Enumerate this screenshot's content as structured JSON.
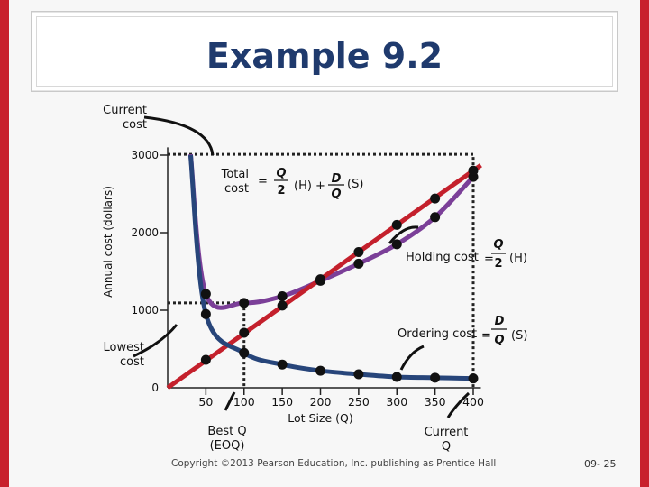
{
  "slide": {
    "title": "Example 9.2",
    "footer": "Copyright ©2013 Pearson Education, Inc. publishing as Prentice Hall",
    "slide_number": "09- 25"
  },
  "chart_data": {
    "type": "line",
    "xlabel": "Lot Size (Q)",
    "ylabel": "Annual cost (dollars)",
    "xlim": [
      0,
      420
    ],
    "ylim": [
      0,
      3200
    ],
    "x_ticks": [
      "0",
      "50",
      "100",
      "150",
      "200",
      "250",
      "300",
      "350",
      "400"
    ],
    "y_ticks": [
      "0",
      "1000",
      "2000",
      "3000"
    ],
    "series": [
      {
        "color": "#7b3f98",
        "x": [
          30,
          50,
          100,
          150,
          200,
          250,
          300,
          350,
          400
        ],
        "y": [
          3010,
          1210,
          1095,
          1180,
          1380,
          1600,
          1850,
          2200,
          2720
        ]
      },
      {
        "color": "#c4202c",
        "x": [
          0,
          50,
          100,
          150,
          200,
          250,
          300,
          350,
          400
        ],
        "y": [
          0,
          360,
          710,
          1060,
          1400,
          1750,
          2100,
          2440,
          2800
        ]
      },
      {
        "color": "#27457a",
        "x": [
          30,
          50,
          100,
          150,
          200,
          250,
          300,
          350,
          400
        ],
        "y": [
          3000,
          950,
          450,
          300,
          220,
          175,
          140,
          130,
          120
        ]
      }
    ],
    "annotations": {
      "current_cost": "Current\ncost",
      "lowest_cost": "Lowest\ncost",
      "best_q": "Best Q\n(EOQ)",
      "current_q": "Current\nQ",
      "total_cost_label": "Total\ncost",
      "holding_cost_label": "Holding cost",
      "ordering_cost_label": "Ordering cost",
      "formula_total": [
        "Q",
        "2",
        "(H) +",
        "D",
        "Q",
        "(S)"
      ],
      "formula_holding": [
        "Q",
        "2",
        "(H)"
      ],
      "formula_ordering": [
        "D",
        "Q",
        "(S)"
      ],
      "equals": "="
    }
  }
}
